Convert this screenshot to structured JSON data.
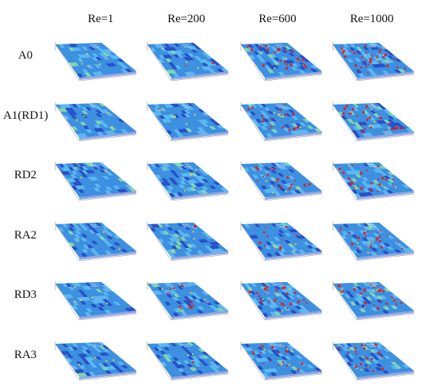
{
  "figure": {
    "column_headers": [
      "Re=1",
      "Re=200",
      "Re=600",
      "Re=1000"
    ],
    "row_labels": [
      "A0",
      "A1(RD1)",
      "RD2",
      "RA2",
      "RD3",
      "RA3"
    ],
    "colors": {
      "surface_base": "#3a8fe0",
      "surface_light": "#5ab8f0",
      "surface_dark": "#2450c8",
      "surface_green": "#7fd6b0",
      "hot_spot_red": "#e02020",
      "hot_spot_yellow": "#e8d040",
      "axis_line": "#888888"
    },
    "panels": [
      [
        {
          "red_level": 0.0
        },
        {
          "red_level": 0.05
        },
        {
          "red_level": 0.55
        },
        {
          "red_level": 0.8
        }
      ],
      [
        {
          "red_level": 0.0
        },
        {
          "red_level": 0.0
        },
        {
          "red_level": 0.5
        },
        {
          "red_level": 0.6
        }
      ],
      [
        {
          "red_level": 0.0
        },
        {
          "red_level": 0.0
        },
        {
          "red_level": 0.5
        },
        {
          "red_level": 0.55
        }
      ],
      [
        {
          "red_level": 0.0
        },
        {
          "red_level": 0.02
        },
        {
          "red_level": 0.25
        },
        {
          "red_level": 0.5
        }
      ],
      [
        {
          "red_level": 0.0
        },
        {
          "red_level": 0.35
        },
        {
          "red_level": 0.6
        },
        {
          "red_level": 0.65
        }
      ],
      [
        {
          "red_level": 0.0
        },
        {
          "red_level": 0.02
        },
        {
          "red_level": 0.4
        },
        {
          "red_level": 0.45
        }
      ]
    ]
  }
}
